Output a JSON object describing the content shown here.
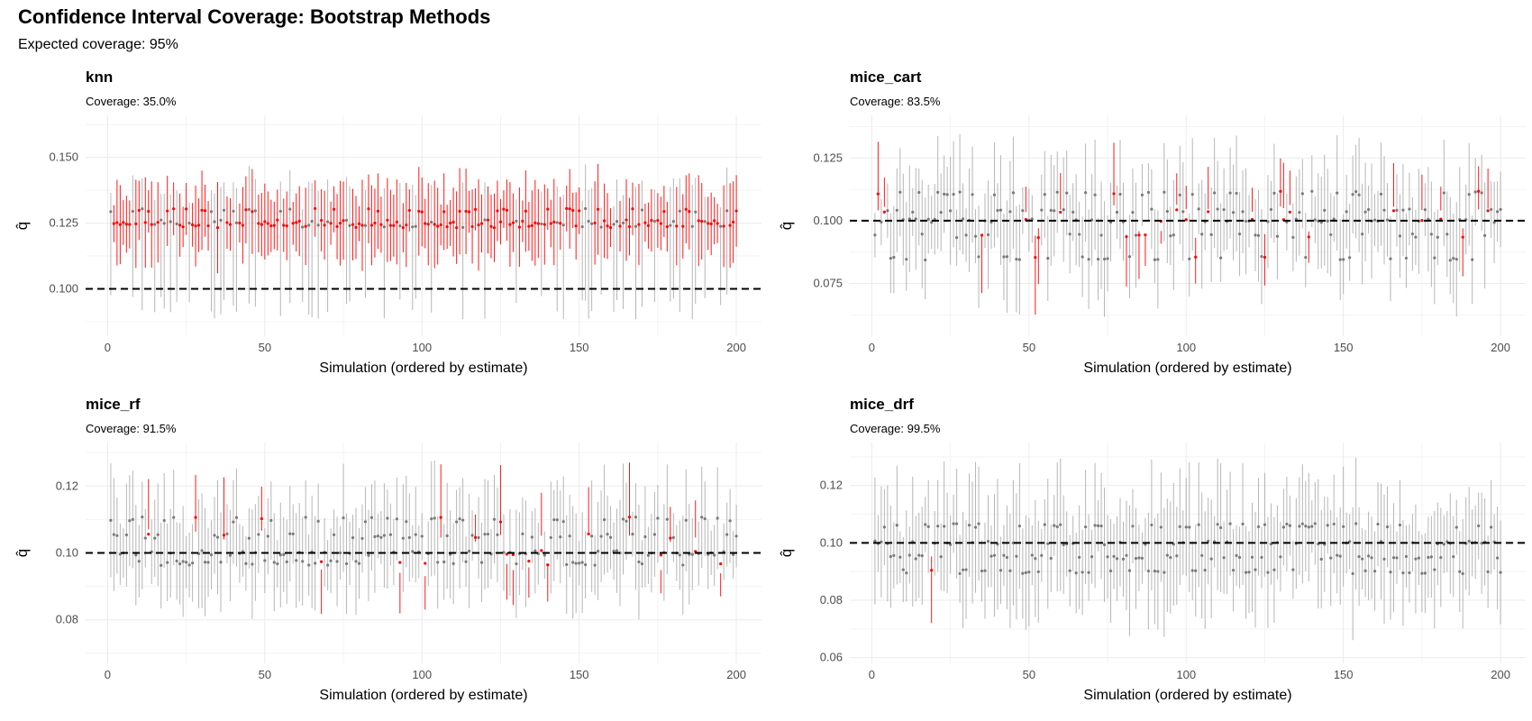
{
  "title": "Confidence Interval Coverage: Bootstrap Methods",
  "subtitle": "Expected coverage: 95%",
  "colors": {
    "covered": "#9e9e9e",
    "missed": "#ff0000",
    "reference": "#000000",
    "grid": "#ebebeb"
  },
  "chart_data": [
    {
      "type": "errorbar",
      "method": "knn",
      "coverage_label": "Coverage: 35.0%",
      "xlabel": "Simulation (ordered by estimate)",
      "ylabel": "q̂",
      "reference_line": 0.1,
      "xlim": [
        -7,
        208
      ],
      "ylim": [
        0.082,
        0.166
      ],
      "xticks": [
        0,
        50,
        100,
        150,
        200
      ],
      "yticks": [
        0.1,
        0.125,
        0.15
      ],
      "ytick_labels": [
        "0.100",
        "0.125",
        "0.150"
      ],
      "n": 200,
      "est_levels": [
        0.13,
        0.1255,
        0.124,
        0.1245
      ],
      "half_width": 0.012,
      "miss_rate": 0.65
    },
    {
      "type": "errorbar",
      "method": "mice_cart",
      "coverage_label": "Coverage: 83.5%",
      "xlabel": "Simulation (ordered by estimate)",
      "ylabel": "q̂",
      "reference_line": 0.1,
      "xlim": [
        -7,
        208
      ],
      "ylim": [
        0.054,
        0.142
      ],
      "xticks": [
        0,
        50,
        100,
        150,
        200
      ],
      "yticks": [
        0.075,
        0.1,
        0.125
      ],
      "ytick_labels": [
        "0.075",
        "0.100",
        "0.125"
      ],
      "n": 200,
      "est_levels": [
        0.111,
        0.104,
        0.1,
        0.094,
        0.085
      ],
      "half_width": 0.016,
      "miss_rate": 0.165
    },
    {
      "type": "errorbar",
      "method": "mice_rf",
      "coverage_label": "Coverage: 91.5%",
      "xlabel": "Simulation (ordered by estimate)",
      "ylabel": "q̂",
      "reference_line": 0.1,
      "xlim": [
        -7,
        208
      ],
      "ylim": [
        0.067,
        0.133
      ],
      "xticks": [
        0,
        50,
        100,
        150,
        200
      ],
      "yticks": [
        0.08,
        0.1,
        0.12
      ],
      "ytick_labels": [
        "0.08",
        "0.10",
        "0.12"
      ],
      "n": 200,
      "est_levels": [
        0.11,
        0.105,
        0.1,
        0.097
      ],
      "half_width": 0.012,
      "miss_rate": 0.085
    },
    {
      "type": "errorbar",
      "method": "mice_drf",
      "coverage_label": "Coverage: 99.5%",
      "xlabel": "Simulation (ordered by estimate)",
      "ylabel": "q̂",
      "reference_line": 0.1,
      "xlim": [
        -7,
        208
      ],
      "ylim": [
        0.058,
        0.135
      ],
      "xticks": [
        0,
        50,
        100,
        150,
        200
      ],
      "yticks": [
        0.06,
        0.08,
        0.1,
        0.12
      ],
      "ytick_labels": [
        "0.06",
        "0.08",
        "0.10",
        "0.12"
      ],
      "n": 200,
      "est_levels": [
        0.106,
        0.1,
        0.095,
        0.09
      ],
      "half_width": 0.016,
      "miss_rate": 0.005
    }
  ]
}
